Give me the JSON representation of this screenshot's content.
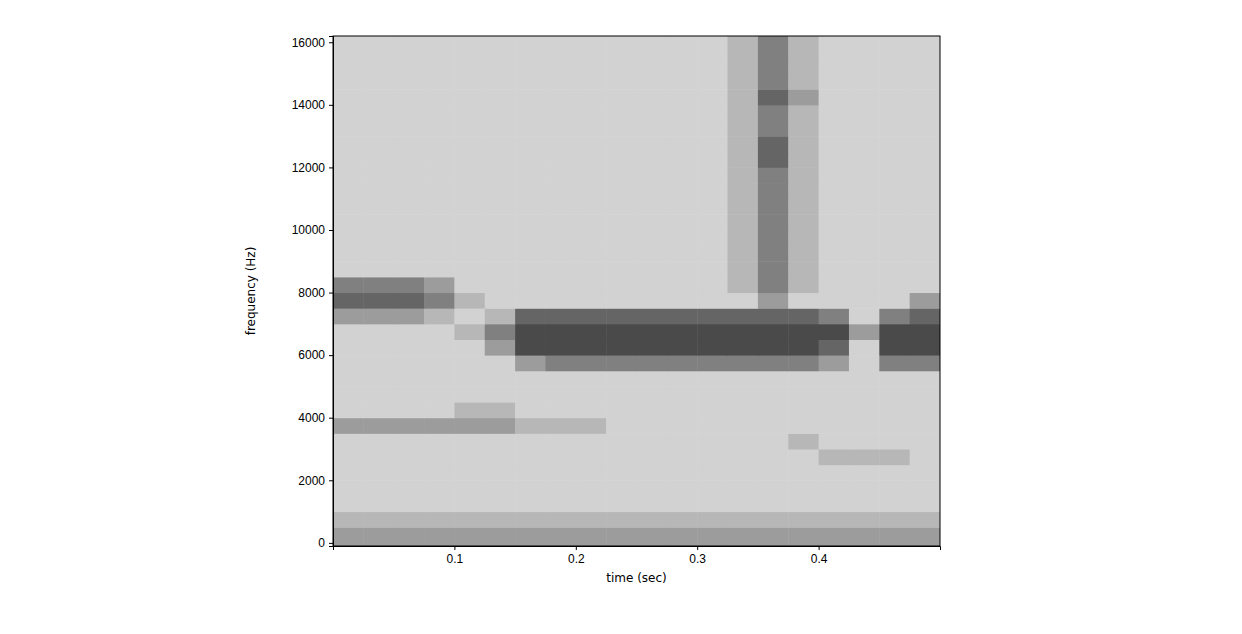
{
  "chart_data": {
    "type": "heatmap",
    "xlabel": "time (sec)",
    "ylabel": "frequency (Hz)",
    "x": [
      0.0125,
      0.0375,
      0.0625,
      0.0875,
      0.1125,
      0.1375,
      0.1625,
      0.1875,
      0.2125,
      0.2375,
      0.2625,
      0.2875,
      0.3125,
      0.3375,
      0.3625,
      0.3875,
      0.4125,
      0.4375,
      0.4625,
      0.4875
    ],
    "y": [
      250,
      750,
      1250,
      1750,
      2250,
      2750,
      3250,
      3750,
      4250,
      4750,
      5250,
      5750,
      6250,
      6750,
      7250,
      7750,
      8250,
      8750,
      9250,
      9750,
      10250,
      10750,
      11250,
      11750,
      12250,
      12750,
      13250,
      13750,
      14250,
      14750,
      15250,
      15750
    ],
    "values": [
      [
        5,
        5,
        5,
        5,
        5,
        5,
        5,
        5,
        5,
        5,
        5,
        5,
        5,
        5,
        5,
        5,
        5,
        5,
        5,
        5
      ],
      [
        4,
        4,
        4,
        4,
        4,
        4,
        4,
        4,
        4,
        4,
        4,
        4,
        4,
        4,
        4,
        4,
        4,
        4,
        4,
        4
      ],
      [
        3,
        3,
        3,
        3,
        3,
        3,
        3,
        3,
        3,
        3,
        3,
        3,
        3,
        3,
        3,
        3,
        3,
        3,
        3,
        3
      ],
      [
        3,
        3,
        3,
        3,
        3,
        3,
        3,
        3,
        3,
        3,
        3,
        3,
        3,
        3,
        3,
        3,
        3,
        3,
        3,
        3
      ],
      [
        3,
        3,
        3,
        3,
        3,
        3,
        3,
        3,
        3,
        3,
        3,
        3,
        3,
        3,
        3,
        3,
        3,
        3,
        3,
        3
      ],
      [
        3,
        3,
        3,
        3,
        3,
        3,
        3,
        3,
        3,
        3,
        3,
        3,
        3,
        3,
        3,
        3,
        4,
        4,
        4,
        3
      ],
      [
        3,
        3,
        3,
        3,
        3,
        3,
        3,
        3,
        3,
        3,
        3,
        3,
        3,
        3,
        3,
        4,
        3,
        3,
        3,
        3
      ],
      [
        5,
        5,
        5,
        5,
        5,
        5,
        4,
        4,
        4,
        3,
        3,
        3,
        3,
        3,
        3,
        3,
        3,
        3,
        3,
        3
      ],
      [
        3,
        3,
        3,
        3,
        4,
        4,
        3,
        3,
        3,
        3,
        3,
        3,
        3,
        3,
        3,
        3,
        3,
        3,
        3,
        3
      ],
      [
        3,
        3,
        3,
        3,
        3,
        3,
        3,
        3,
        3,
        3,
        3,
        3,
        3,
        3,
        3,
        3,
        3,
        3,
        3,
        3
      ],
      [
        3,
        3,
        3,
        3,
        3,
        3,
        3,
        3,
        3,
        3,
        3,
        3,
        3,
        3,
        3,
        3,
        3,
        3,
        3,
        3
      ],
      [
        3,
        3,
        3,
        3,
        3,
        3,
        5,
        6,
        6,
        6,
        6,
        6,
        6,
        6,
        6,
        6,
        5,
        3,
        6,
        6
      ],
      [
        3,
        3,
        3,
        3,
        3,
        5,
        8,
        8,
        8,
        8,
        8,
        8,
        8,
        8,
        8,
        8,
        7,
        3,
        8,
        8
      ],
      [
        3,
        3,
        3,
        3,
        4,
        6,
        8,
        8,
        8,
        8,
        8,
        8,
        8,
        8,
        8,
        8,
        8,
        5,
        8,
        8
      ],
      [
        5,
        5,
        5,
        4,
        3,
        4,
        7,
        7,
        7,
        7,
        7,
        7,
        7,
        7,
        7,
        7,
        6,
        3,
        6,
        7
      ],
      [
        7,
        7,
        7,
        6,
        4,
        3,
        3,
        3,
        3,
        3,
        3,
        3,
        3,
        3,
        5,
        3,
        3,
        3,
        3,
        5
      ],
      [
        6,
        6,
        6,
        5,
        3,
        3,
        3,
        3,
        3,
        3,
        3,
        3,
        3,
        4,
        6,
        4,
        3,
        3,
        3,
        3
      ],
      [
        3,
        3,
        3,
        3,
        3,
        3,
        3,
        3,
        3,
        3,
        3,
        3,
        3,
        4,
        6,
        4,
        3,
        3,
        3,
        3
      ],
      [
        3,
        3,
        3,
        3,
        3,
        3,
        3,
        3,
        3,
        3,
        3,
        3,
        3,
        4,
        6,
        4,
        3,
        3,
        3,
        3
      ],
      [
        3,
        3,
        3,
        3,
        3,
        3,
        3,
        3,
        3,
        3,
        3,
        3,
        3,
        4,
        6,
        4,
        3,
        3,
        3,
        3
      ],
      [
        3,
        3,
        3,
        3,
        3,
        3,
        3,
        3,
        3,
        3,
        3,
        3,
        3,
        4,
        6,
        4,
        3,
        3,
        3,
        3
      ],
      [
        3,
        3,
        3,
        3,
        3,
        3,
        3,
        3,
        3,
        3,
        3,
        3,
        3,
        4,
        6,
        4,
        3,
        3,
        3,
        3
      ],
      [
        3,
        3,
        3,
        3,
        3,
        3,
        3,
        3,
        3,
        3,
        3,
        3,
        3,
        4,
        6,
        4,
        3,
        3,
        3,
        3
      ],
      [
        3,
        3,
        3,
        3,
        3,
        3,
        3,
        3,
        3,
        3,
        3,
        3,
        3,
        4,
        6,
        4,
        3,
        3,
        3,
        3
      ],
      [
        3,
        3,
        3,
        3,
        3,
        3,
        3,
        3,
        3,
        3,
        3,
        3,
        3,
        4,
        7,
        4,
        3,
        3,
        3,
        3
      ],
      [
        3,
        3,
        3,
        3,
        3,
        3,
        3,
        3,
        3,
        3,
        3,
        3,
        3,
        4,
        7,
        4,
        3,
        3,
        3,
        3
      ],
      [
        3,
        3,
        3,
        3,
        3,
        3,
        3,
        3,
        3,
        3,
        3,
        3,
        3,
        4,
        6,
        4,
        3,
        3,
        3,
        3
      ],
      [
        3,
        3,
        3,
        3,
        3,
        3,
        3,
        3,
        3,
        3,
        3,
        3,
        3,
        4,
        6,
        4,
        3,
        3,
        3,
        3
      ],
      [
        3,
        3,
        3,
        3,
        3,
        3,
        3,
        3,
        3,
        3,
        3,
        3,
        3,
        4,
        7,
        5,
        3,
        3,
        3,
        3
      ],
      [
        3,
        3,
        3,
        3,
        3,
        3,
        3,
        3,
        3,
        3,
        3,
        3,
        3,
        4,
        6,
        4,
        3,
        3,
        3,
        3
      ],
      [
        3,
        3,
        3,
        3,
        3,
        3,
        3,
        3,
        3,
        3,
        3,
        3,
        3,
        4,
        6,
        4,
        3,
        3,
        3,
        3
      ],
      [
        3,
        3,
        3,
        3,
        3,
        3,
        3,
        3,
        3,
        3,
        3,
        3,
        3,
        4,
        6,
        4,
        3,
        3,
        3,
        3
      ]
    ],
    "color": "#4a4a4a",
    "xlim": [
      0,
      0.5
    ],
    "ylim": [
      -100,
      16200
    ],
    "xticks": [
      0.1,
      0.2,
      0.3,
      0.4
    ],
    "yticks": [
      0,
      2000,
      4000,
      6000,
      8000,
      10000,
      12000,
      14000,
      16000
    ]
  }
}
